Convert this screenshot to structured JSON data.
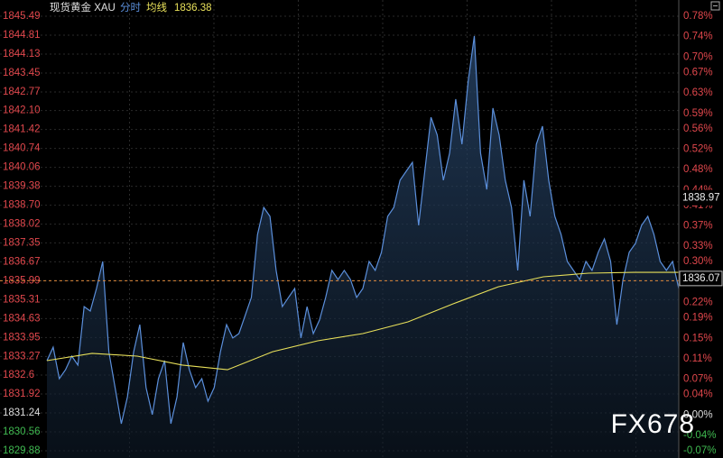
{
  "header": {
    "instrument": "现货黄金 XAU",
    "avg_readout": 1836.38
  },
  "watermark": "FX678",
  "chart_data": {
    "type": "line",
    "series": [
      {
        "name": "分时",
        "color": "#5b8fdb",
        "values": [
          1833.12,
          1833.6,
          1832.47,
          1832.79,
          1833.28,
          1832.96,
          1835.06,
          1834.9,
          1835.71,
          1836.68,
          1833.44,
          1832.15,
          1830.85,
          1831.82,
          1833.44,
          1834.41,
          1832.15,
          1831.18,
          1832.47,
          1833.12,
          1830.85,
          1831.82,
          1833.77,
          1832.79,
          1832.15,
          1832.47,
          1831.66,
          1832.15,
          1833.44,
          1834.41,
          1833.93,
          1834.09,
          1834.74,
          1835.39,
          1837.65,
          1838.62,
          1838.3,
          1836.36,
          1835.06,
          1835.39,
          1835.71,
          1833.93,
          1835.06,
          1834.09,
          1834.58,
          1835.39,
          1836.36,
          1836.03,
          1836.36,
          1836.03,
          1835.39,
          1835.71,
          1836.68,
          1836.36,
          1837.01,
          1838.3,
          1838.62,
          1839.6,
          1839.92,
          1840.24,
          1837.98,
          1839.92,
          1841.86,
          1841.22,
          1839.6,
          1840.57,
          1842.51,
          1840.89,
          1843.16,
          1844.78,
          1840.57,
          1839.27,
          1842.19,
          1841.22,
          1839.6,
          1838.62,
          1836.36,
          1839.6,
          1838.3,
          1840.89,
          1841.54,
          1839.6,
          1838.3,
          1837.65,
          1836.68,
          1836.36,
          1836.03,
          1836.68,
          1836.36,
          1837.01,
          1837.49,
          1836.68,
          1834.41,
          1836.03,
          1837.01,
          1837.33,
          1837.98,
          1838.3,
          1837.65,
          1836.68,
          1836.36,
          1836.68,
          1835.71
        ]
      },
      {
        "name": "均线",
        "color": "#e8e05a",
        "values": [
          1833.12,
          1833.38,
          1833.28,
          1832.96,
          1832.79,
          1833.44,
          1833.83,
          1834.09,
          1834.51,
          1835.16,
          1835.77,
          1836.13,
          1836.26,
          1836.29,
          1836.29
        ]
      }
    ],
    "ylim": [
      1829.88,
      1845.49
    ],
    "yticks": [
      1845.49,
      1844.81,
      1844.13,
      1843.45,
      1842.77,
      {
        "value": 1842.1,
        "label": "1842.10"
      },
      1841.42,
      1840.74,
      1840.06,
      1839.38,
      {
        "value": 1838.7,
        "label": "1838.70"
      },
      1838.02,
      1837.35,
      1836.67,
      1835.99,
      1835.31,
      1834.63,
      1833.95,
      1833.27,
      1832.6,
      1831.92,
      1831.24,
      1830.56,
      1829.88
    ],
    "y2lim": [
      -0.07,
      0.78
    ],
    "y2ticks": [
      {
        "value": 0.78,
        "label": "0.78%"
      },
      {
        "value": 0.74,
        "label": "0.74%"
      },
      {
        "value": 0.7,
        "label": "0.70%"
      },
      {
        "value": 0.67,
        "label": "0.67%"
      },
      {
        "value": 0.63,
        "label": "0.63%"
      },
      {
        "value": 0.59,
        "label": "0.59%"
      },
      {
        "value": 0.56,
        "label": "0.56%"
      },
      {
        "value": 0.52,
        "label": "0.52%"
      },
      {
        "value": 0.48,
        "label": "0.48%"
      },
      {
        "value": 0.44,
        "label": "0.44%"
      },
      {
        "value": 0.41,
        "label": "0.41%"
      },
      {
        "value": 0.37,
        "label": "0.37%"
      },
      {
        "value": 0.33,
        "label": "0.33%"
      },
      {
        "value": 0.3,
        "label": "0.30%"
      },
      {
        "value": 0.26,
        "label": "0.26%"
      },
      {
        "value": 0.22,
        "label": "0.22%"
      },
      {
        "value": 0.19,
        "label": "0.19%"
      },
      {
        "value": 0.15,
        "label": "0.15%"
      },
      {
        "value": 0.11,
        "label": "0.11%"
      },
      {
        "value": 0.07,
        "label": "0.07%"
      },
      {
        "value": 0.04,
        "label": "0.04%"
      },
      {
        "value": 0.0,
        "label": "0.00%"
      },
      {
        "value": -0.04,
        "label": "-0.04%"
      },
      {
        "value": -0.07,
        "label": "-0.07%"
      }
    ],
    "reference_line": 1835.99,
    "price_labels": [
      1838.97,
      1836.07
    ],
    "grid": true
  }
}
